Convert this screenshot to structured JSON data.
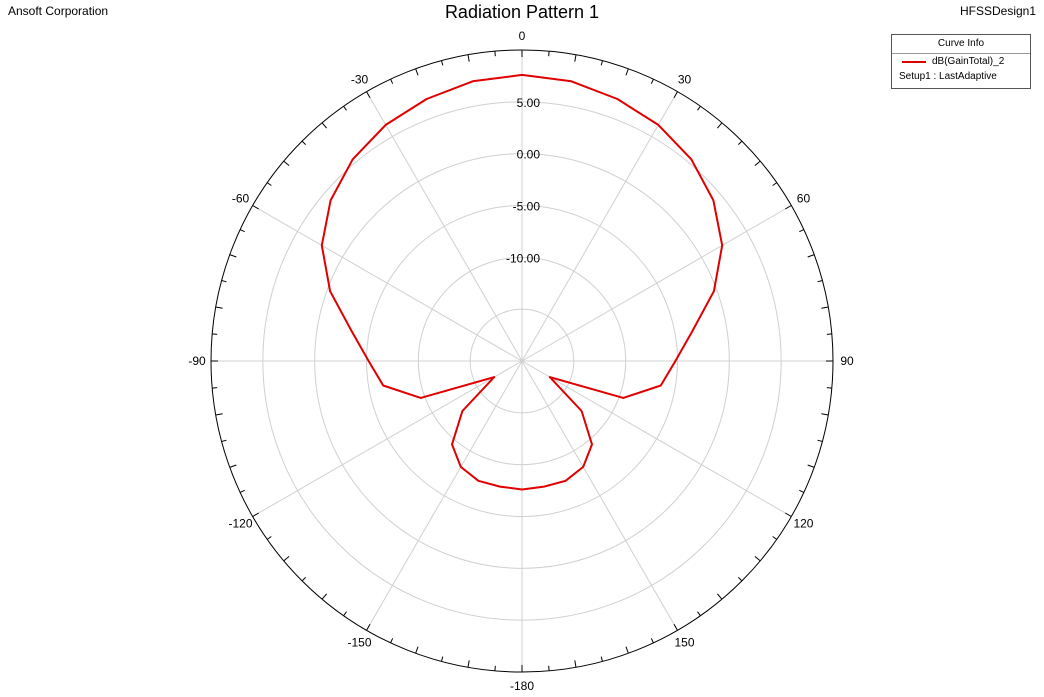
{
  "header": {
    "company": "Ansoft Corporation",
    "title": "Radiation Pattern 1",
    "design": "HFSSDesign1"
  },
  "legend": {
    "title": "Curve Info",
    "series_name": "dB(GainTotal)_2",
    "series_subtitle": "Setup1 : LastAdaptive"
  },
  "colors": {
    "series": "#e00000",
    "grid": "#d0d0d0",
    "frame": "#000000"
  },
  "chart_data": {
    "type": "polar-line",
    "title": "Radiation Pattern 1",
    "angle_unit": "deg",
    "angle_ticks": [
      0,
      30,
      60,
      90,
      120,
      150,
      -180,
      -150,
      -120,
      -90,
      -60,
      -30
    ],
    "angle_tick_labels": [
      "0",
      "30",
      "60",
      "90",
      "120",
      "150",
      "-180",
      "-150",
      "-120",
      "-90",
      "-60",
      "-30"
    ],
    "radial_range": [
      -20,
      10
    ],
    "radial_ticks": [
      5,
      0,
      -5,
      -10
    ],
    "radial_tick_labels": [
      "5.00",
      "0.00",
      "-5.00",
      "-10.00"
    ],
    "grid": true,
    "legend_position": "top-right",
    "series": [
      {
        "name": "dB(GainTotal)_2",
        "angles": [
          -180,
          -170,
          -160,
          -150,
          -140,
          -130,
          -120,
          -110,
          -100,
          -90,
          -80,
          -70,
          -60,
          -50,
          -40,
          -30,
          -20,
          -10,
          0,
          10,
          20,
          30,
          40,
          50,
          60,
          70,
          80,
          90,
          100,
          110,
          120,
          130,
          140,
          150,
          160,
          170,
          180
        ],
        "values": [
          -7.6,
          -7.7,
          -7.7,
          -8.2,
          -9.5,
          -12.5,
          -16.9,
          -9.6,
          -6.4,
          -5.2,
          -3.3,
          -0.3,
          2.3,
          4.1,
          5.4,
          6.3,
          6.9,
          7.4,
          7.6,
          7.4,
          6.9,
          6.3,
          5.4,
          4.1,
          2.3,
          -0.3,
          -3.3,
          -5.2,
          -6.4,
          -9.6,
          -16.9,
          -12.5,
          -9.5,
          -8.2,
          -7.7,
          -7.7,
          -7.6
        ]
      }
    ]
  }
}
